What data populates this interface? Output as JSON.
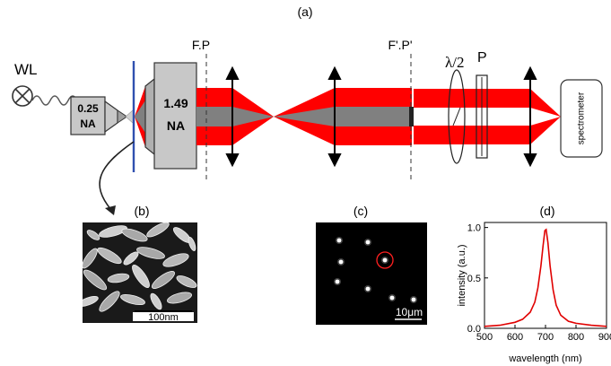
{
  "panel_labels": {
    "a": "(a)",
    "b": "(b)",
    "c": "(c)",
    "d": "(d)"
  },
  "setup": {
    "source_label": "WL",
    "objective_low": {
      "na_value": "0.25",
      "na_text": "NA"
    },
    "objective_high": {
      "na_value": "1.49",
      "na_text": "NA"
    },
    "focal_plane_label": "F.P",
    "conjugate_plane_label": "F'.P'",
    "half_wave_plate_label": "λ/2",
    "polarizer_label": "P",
    "detector_label": "spectrometer"
  },
  "sem_image": {
    "scalebar_label": "100nm"
  },
  "darkfield_image": {
    "scalebar_label": "10μm",
    "particle_count": 8,
    "highlighted_particles": 1
  },
  "colors": {
    "beam": "#ff0000",
    "beam_core": "#808080",
    "marker": "#ff2020",
    "objective_fill": "#c8c8c8",
    "substrate": "#3050b0"
  },
  "chart_data": {
    "type": "line",
    "title": "",
    "xlabel": "wavelength (nm)",
    "ylabel": "intensity (a.u.)",
    "xlim": [
      500,
      900
    ],
    "ylim": [
      0,
      1.05
    ],
    "x_ticks": [
      500,
      600,
      700,
      800,
      900
    ],
    "y_ticks": [
      0.0,
      0.5,
      1.0
    ],
    "x_tick_labels": [
      "500",
      "600",
      "700",
      "800",
      "900"
    ],
    "y_tick_labels": [
      "0.0",
      "0.5",
      "1.0"
    ],
    "grid": false,
    "series": [
      {
        "color": "#e00000",
        "x": [
          500,
          550,
          600,
          625,
          650,
          665,
          675,
          685,
          692,
          698,
          702,
          708,
          715,
          725,
          735,
          750,
          775,
          800,
          850,
          900
        ],
        "y": [
          0.02,
          0.03,
          0.06,
          0.09,
          0.16,
          0.26,
          0.4,
          0.62,
          0.82,
          0.97,
          0.98,
          0.85,
          0.62,
          0.38,
          0.23,
          0.13,
          0.07,
          0.05,
          0.03,
          0.02
        ]
      }
    ]
  }
}
